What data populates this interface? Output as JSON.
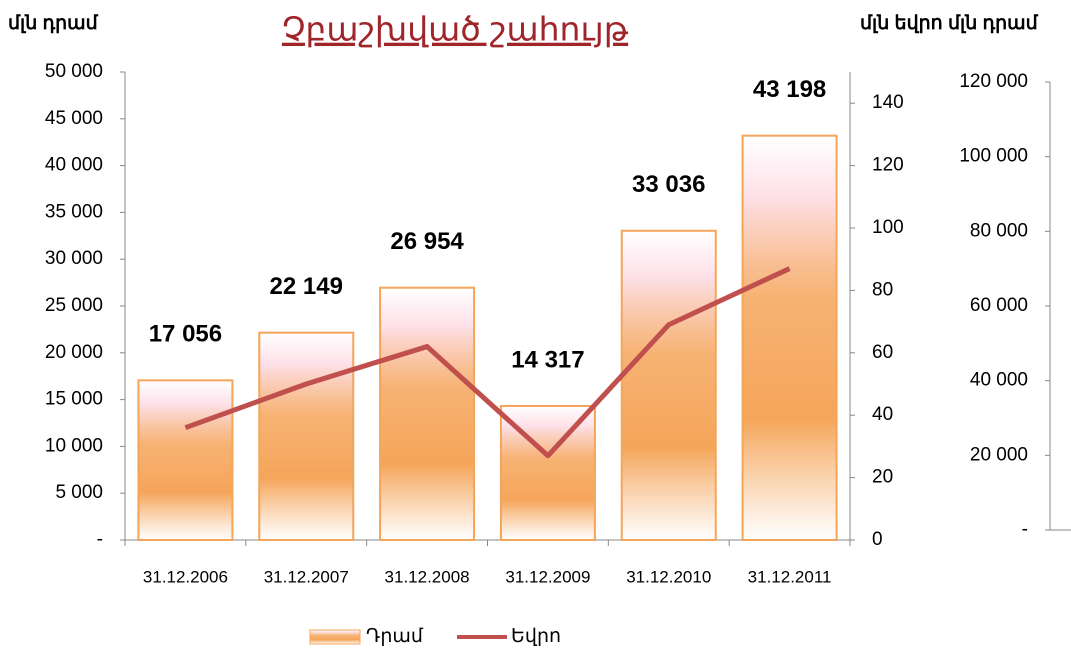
{
  "chart_data": [
    {
      "type": "bar",
      "title": "Չբաշխված շահույթ",
      "y_label": "մլն դրամ",
      "y2_label": "մլն եվրո",
      "categories": [
        "31.12.2006",
        "31.12.2007",
        "31.12.2008",
        "31.12.2009",
        "31.12.2010",
        "31.12.2011"
      ],
      "series": [
        {
          "name": "Դրամ",
          "color": "#f5a55a",
          "values": [
            17056,
            22149,
            26954,
            14317,
            33036,
            43198
          ],
          "value_labels": [
            "17 056",
            "22 149",
            "26 954",
            "14 317",
            "33 036",
            "43 198"
          ]
        },
        {
          "name": "Եվրո",
          "color": "#c0504d",
          "axis": "y2",
          "values": [
            36,
            50,
            62,
            27,
            69,
            87
          ]
        }
      ],
      "ylim": [
        0,
        50000
      ],
      "yticks": [
        {
          "value": 0,
          "label": "-"
        },
        {
          "value": 5000,
          "label": "5 000"
        },
        {
          "value": 10000,
          "label": "10 000"
        },
        {
          "value": 15000,
          "label": "15 000"
        },
        {
          "value": 20000,
          "label": "20 000"
        },
        {
          "value": 25000,
          "label": "25 000"
        },
        {
          "value": 30000,
          "label": "30 000"
        },
        {
          "value": 35000,
          "label": "35 000"
        },
        {
          "value": 40000,
          "label": "40 000"
        },
        {
          "value": 45000,
          "label": "45 000"
        },
        {
          "value": 50000,
          "label": "50 000"
        }
      ],
      "y2lim": [
        0,
        150
      ],
      "y2ticks": [
        0,
        20,
        40,
        60,
        80,
        100,
        120,
        140
      ],
      "legend": "bottom"
    },
    {
      "type": "bar",
      "y_label": "մլն դրամ",
      "ylim": [
        0,
        120000
      ],
      "yticks": [
        {
          "value": 0,
          "label": "-"
        },
        {
          "value": 20000,
          "label": "20 000"
        },
        {
          "value": 40000,
          "label": "40 000"
        },
        {
          "value": 60000,
          "label": "60 000"
        },
        {
          "value": 80000,
          "label": "80 000"
        },
        {
          "value": 100000,
          "label": "100 000"
        },
        {
          "value": 120000,
          "label": "120 000"
        }
      ]
    }
  ]
}
